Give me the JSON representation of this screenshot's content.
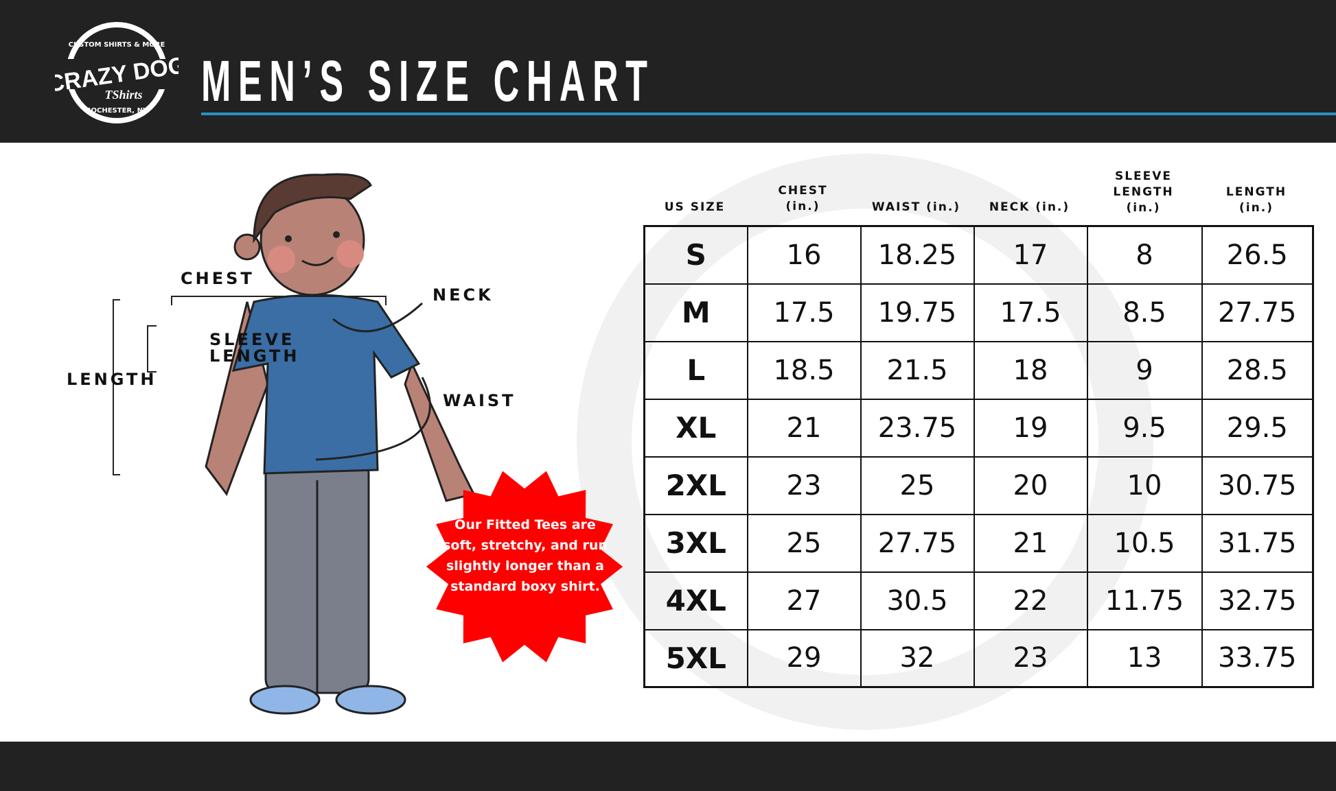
{
  "header": {
    "title": "MEN’S SIZE CHART",
    "logo": {
      "brand": "CRAZY DOG",
      "sub": "TShirts",
      "top_text": "CUSTOM SHIRTS & MORE",
      "bottom_text": "ROCHESTER, NY"
    },
    "accent": "#2b8fc6"
  },
  "figure_labels": {
    "chest": "CHEST",
    "neck": "NECK",
    "sleeve_line1": "SLEEVE",
    "sleeve_line2": "LENGTH",
    "length": "LENGTH",
    "waist": "WAIST"
  },
  "callout": {
    "text": "Our Fitted Tees are soft, stretchy, and run slightly longer than a standard boxy shirt.",
    "color": "#ff0000"
  },
  "table": {
    "headers": [
      [
        "US SIZE"
      ],
      [
        "CHEST",
        "(in.)"
      ],
      [
        "WAIST (in.)"
      ],
      [
        "NECK (in.)"
      ],
      [
        "SLEEVE",
        "LENGTH",
        "(in.)"
      ],
      [
        "LENGTH",
        "(in.)"
      ]
    ],
    "rows": [
      [
        "S",
        "16",
        "18.25",
        "17",
        "8",
        "26.5"
      ],
      [
        "M",
        "17.5",
        "19.75",
        "17.5",
        "8.5",
        "27.75"
      ],
      [
        "L",
        "18.5",
        "21.5",
        "18",
        "9",
        "28.5"
      ],
      [
        "XL",
        "21",
        "23.75",
        "19",
        "9.5",
        "29.5"
      ],
      [
        "2XL",
        "23",
        "25",
        "20",
        "10",
        "30.75"
      ],
      [
        "3XL",
        "25",
        "27.75",
        "21",
        "10.5",
        "31.75"
      ],
      [
        "4XL",
        "27",
        "30.5",
        "22",
        "11.75",
        "32.75"
      ],
      [
        "5XL",
        "29",
        "32",
        "23",
        "13",
        "33.75"
      ]
    ]
  }
}
